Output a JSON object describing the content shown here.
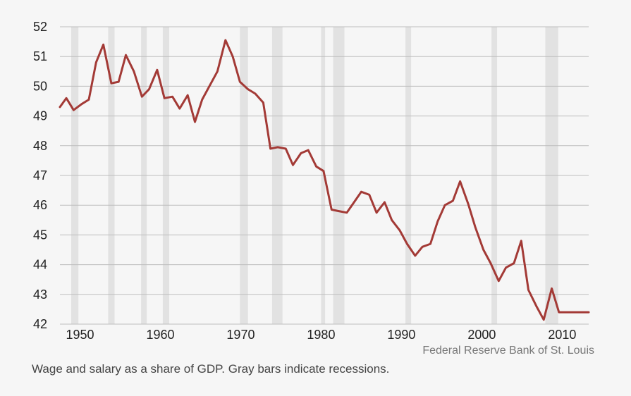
{
  "source": "Federal Reserve Bank of St. Louis",
  "caption": "Wage and salary as a share of GDP. Gray bars indicate recessions.",
  "colors": {
    "background": "#f6f6f6",
    "line": "#a33a36",
    "recession": "#e2e2e2",
    "grid": "#bdbdbd"
  },
  "chart_data": {
    "type": "line",
    "title": "",
    "xlabel": "",
    "ylabel": "",
    "xlim": [
      1947.5,
      2013.3
    ],
    "ylim": [
      42,
      52
    ],
    "grid": true,
    "x_ticks": [
      1950,
      1960,
      1970,
      1980,
      1990,
      2000,
      2010
    ],
    "y_ticks": [
      42,
      43,
      44,
      45,
      46,
      47,
      48,
      49,
      50,
      51,
      52
    ],
    "recessions": [
      [
        1948.9,
        1949.8
      ],
      [
        1953.5,
        1954.3
      ],
      [
        1957.6,
        1958.3
      ],
      [
        1960.3,
        1961.1
      ],
      [
        1969.9,
        1970.9
      ],
      [
        1973.9,
        1975.2
      ],
      [
        1980.0,
        1980.5
      ],
      [
        1981.5,
        1982.9
      ],
      [
        1990.5,
        1991.2
      ],
      [
        2001.2,
        2001.9
      ],
      [
        2007.9,
        2009.5
      ]
    ],
    "series": [
      {
        "x": [
          1947.5,
          1948.3,
          1949.2,
          1950.2,
          1951.1,
          1952.0,
          1952.9,
          1953.9,
          1954.8,
          1955.7,
          1956.7,
          1957.7,
          1958.6,
          1959.6,
          1960.5,
          1961.5,
          1962.4,
          1963.4,
          1964.3,
          1965.2,
          1966.2,
          1967.1,
          1968.1,
          1969.0,
          1969.9,
          1970.9,
          1971.8,
          1972.8,
          1973.7,
          1974.6,
          1975.6,
          1976.5,
          1977.5,
          1978.4,
          1979.4,
          1980.3,
          1981.3,
          1982.2,
          1983.2,
          1984.1,
          1985.0,
          1986.0,
          1986.9,
          1987.9,
          1988.8,
          1989.8,
          1990.7,
          1991.7,
          1992.6,
          1993.6,
          1994.5,
          1995.4,
          1996.4,
          1997.3,
          1998.3,
          1999.2,
          2000.2,
          2001.1,
          2002.1,
          2003.0,
          2004.0,
          2004.9,
          2005.8,
          2006.8,
          2007.7,
          2008.7,
          2009.6,
          2010.6,
          2011.5,
          2012.5,
          2013.3
        ],
        "values": [
          49.3,
          49.6,
          49.2,
          49.4,
          49.55,
          50.8,
          51.4,
          50.1,
          50.15,
          51.05,
          50.5,
          49.65,
          49.9,
          50.55,
          49.6,
          49.65,
          49.25,
          49.7,
          48.8,
          49.55,
          50.05,
          50.5,
          51.55,
          51.0,
          50.15,
          49.9,
          49.75,
          49.45,
          47.9,
          47.95,
          47.9,
          47.35,
          47.75,
          47.85,
          47.3,
          47.15,
          45.85,
          45.8,
          45.75,
          46.1,
          46.45,
          46.35,
          45.75,
          46.1,
          45.5,
          45.15,
          44.7,
          44.3,
          44.6,
          44.7,
          45.45,
          46.0,
          46.15,
          46.8,
          46.05,
          45.25,
          44.5,
          44.05,
          43.45,
          43.9,
          44.05,
          44.8,
          43.15,
          42.6,
          42.15,
          43.2,
          42.4,
          42.4,
          42.4,
          42.4,
          42.4
        ]
      }
    ]
  }
}
